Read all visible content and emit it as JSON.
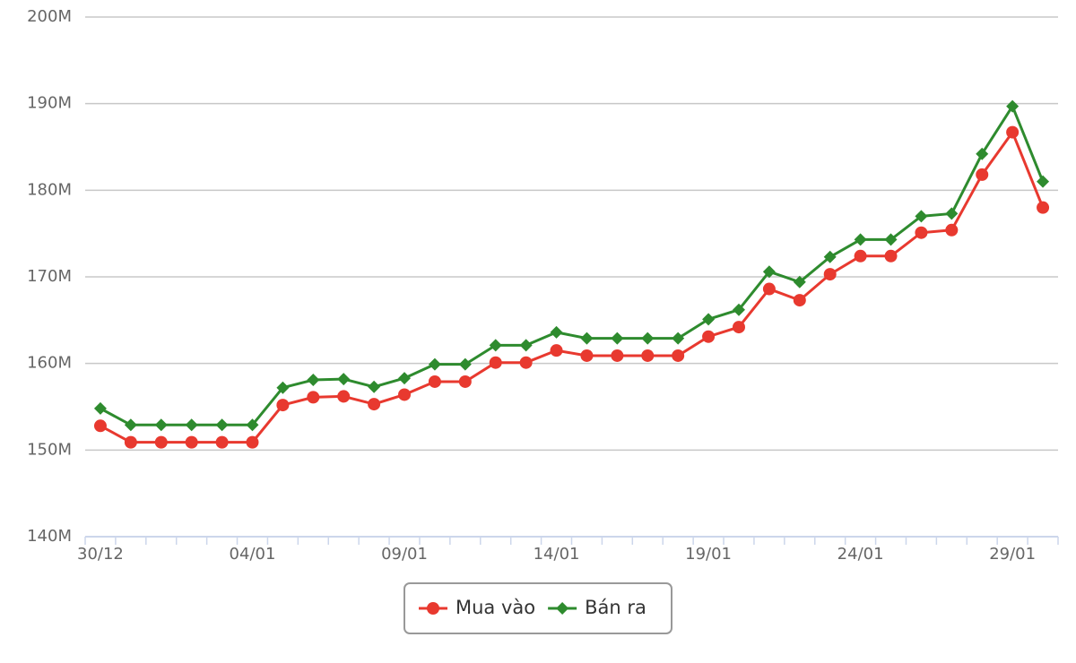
{
  "chart_data": {
    "type": "line",
    "categories": [
      "30/12",
      null,
      null,
      null,
      null,
      "04/01",
      null,
      null,
      null,
      null,
      "09/01",
      null,
      null,
      null,
      null,
      "14/01",
      null,
      null,
      null,
      null,
      "19/01",
      null,
      null,
      null,
      null,
      "24/01",
      null,
      null,
      null,
      null,
      "29/01",
      null
    ],
    "series": [
      {
        "name": "Mua vào",
        "color": "#e8392f",
        "marker": "circle",
        "values": [
          152.8,
          150.9,
          150.9,
          150.9,
          150.9,
          150.9,
          155.2,
          156.1,
          156.2,
          155.3,
          156.4,
          157.9,
          157.9,
          160.1,
          160.1,
          161.5,
          160.9,
          160.9,
          160.9,
          160.9,
          163.1,
          164.2,
          168.6,
          167.3,
          170.3,
          172.4,
          172.4,
          175.1,
          175.4,
          181.8,
          186.7,
          178.0
        ]
      },
      {
        "name": "Bán ra",
        "color": "#2e8b2e",
        "marker": "diamond",
        "values": [
          154.8,
          152.9,
          152.9,
          152.9,
          152.9,
          152.9,
          157.2,
          158.1,
          158.2,
          157.3,
          158.3,
          159.9,
          159.9,
          162.1,
          162.1,
          163.6,
          162.9,
          162.9,
          162.9,
          162.9,
          165.1,
          166.2,
          170.6,
          169.4,
          172.3,
          174.3,
          174.3,
          177.0,
          177.3,
          184.2,
          189.7,
          181.0
        ]
      }
    ],
    "ylim": [
      140,
      200
    ],
    "yticks": [
      {
        "value": 140,
        "label": "140M"
      },
      {
        "value": 150,
        "label": "150M"
      },
      {
        "value": 160,
        "label": "160M"
      },
      {
        "value": 170,
        "label": "170M"
      },
      {
        "value": 180,
        "label": "180M"
      },
      {
        "value": 190,
        "label": "190M"
      },
      {
        "value": 200,
        "label": "200M"
      }
    ],
    "grid": true
  }
}
